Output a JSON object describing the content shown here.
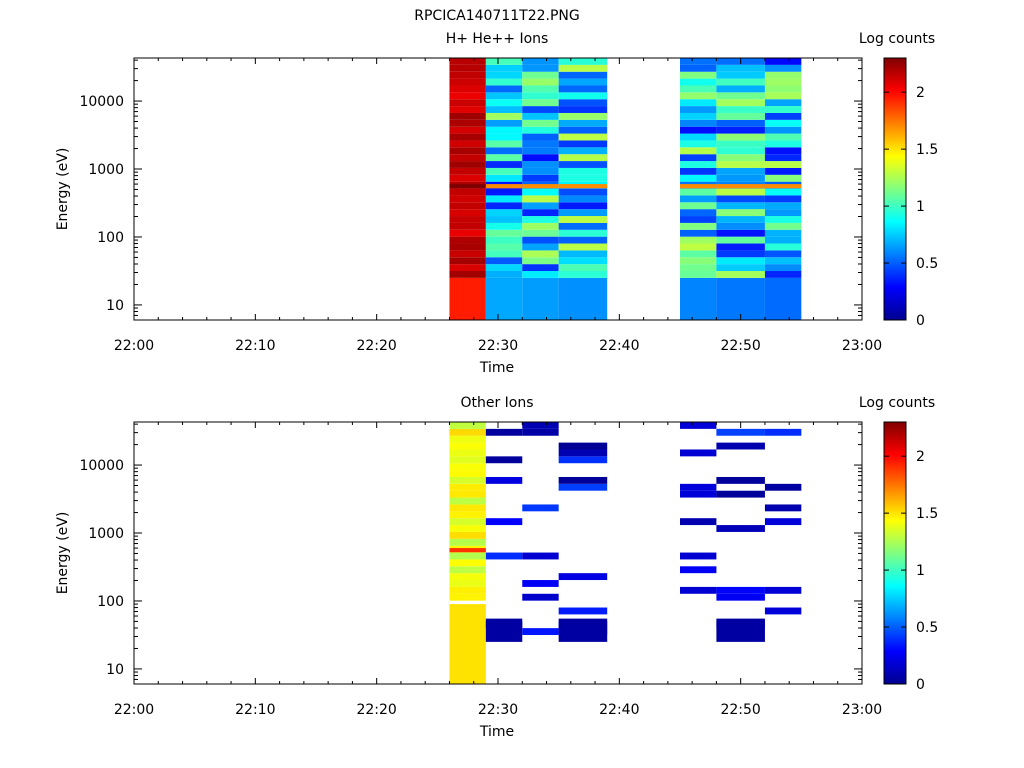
{
  "figure_title": "RPCICA140711T22.PNG",
  "panels": [
    {
      "title": "H+ He++ Ions",
      "ylabel": "Energy (eV)",
      "xlabel": "Time",
      "colorbar_label": "Log counts"
    },
    {
      "title": "Other Ions",
      "ylabel": "Energy (eV)",
      "xlabel": "Time",
      "colorbar_label": "Log counts"
    }
  ],
  "colormap": [
    "#00008f",
    "#0000ff",
    "#0080ff",
    "#00ffff",
    "#80ff80",
    "#ffff00",
    "#ff8000",
    "#ff0000",
    "#800000"
  ],
  "chart_data": [
    {
      "type": "heatmap",
      "title": "H+ He++ Ions",
      "xlabel": "Time",
      "ylabel": "Energy (eV)",
      "yscale": "log",
      "xlim": [
        "22:00",
        "23:00"
      ],
      "ylim": [
        6,
        43000
      ],
      "x_ticks": [
        "22:00",
        "22:10",
        "22:20",
        "22:30",
        "22:40",
        "22:50",
        "23:00"
      ],
      "y_ticks": [
        "10",
        "100",
        "1000",
        "10000"
      ],
      "colorbar": {
        "label": "Log counts",
        "range": [
          0,
          2.3
        ],
        "ticks": [
          "0",
          "0.5",
          "1",
          "1.5",
          "2"
        ]
      },
      "columns": [
        {
          "start": "22:26",
          "end": "22:29",
          "profile": "red"
        },
        {
          "start": "22:29",
          "end": "22:32",
          "profile": "teal"
        },
        {
          "start": "22:32",
          "end": "22:35",
          "profile": "teal"
        },
        {
          "start": "22:35",
          "end": "22:39",
          "profile": "teal"
        },
        {
          "start": "22:45",
          "end": "22:48",
          "profile": "teal"
        },
        {
          "start": "22:48",
          "end": "22:52",
          "profile": "teal"
        },
        {
          "start": "22:52",
          "end": "22:55",
          "profile": "teal"
        }
      ],
      "features": "Column 22:26-22:29 at log counts 1.9-2.3; other columns mostly 0.5-1.4 with a peak near 1.6-1.8 around 550 eV"
    },
    {
      "type": "heatmap",
      "title": "Other Ions",
      "xlabel": "Time",
      "ylabel": "Energy (eV)",
      "yscale": "log",
      "xlim": [
        "22:00",
        "23:00"
      ],
      "ylim": [
        6,
        43000
      ],
      "x_ticks": [
        "22:00",
        "22:10",
        "22:20",
        "22:30",
        "22:40",
        "22:50",
        "23:00"
      ],
      "y_ticks": [
        "10",
        "100",
        "1000",
        "10000"
      ],
      "colorbar": {
        "label": "Log counts",
        "range": [
          0,
          2.3
        ],
        "ticks": [
          "0",
          "0.5",
          "1",
          "1.5",
          "2"
        ]
      },
      "columns": [
        {
          "start": "22:26",
          "end": "22:29",
          "profile": "yellow"
        },
        {
          "start": "22:29",
          "end": "22:32",
          "profile": "sparse"
        },
        {
          "start": "22:32",
          "end": "22:35",
          "profile": "sparse"
        },
        {
          "start": "22:35",
          "end": "22:39",
          "profile": "sparse"
        },
        {
          "start": "22:45",
          "end": "22:48",
          "profile": "sparse"
        },
        {
          "start": "22:48",
          "end": "22:52",
          "profile": "sparse"
        },
        {
          "start": "22:52",
          "end": "22:55",
          "profile": "sparse"
        }
      ],
      "features": "Column 22:26-22:29 at log counts 1.2-1.6 with peak near 1.9 at ~550 eV; other columns sparse thin bins at 0-0.5"
    }
  ]
}
